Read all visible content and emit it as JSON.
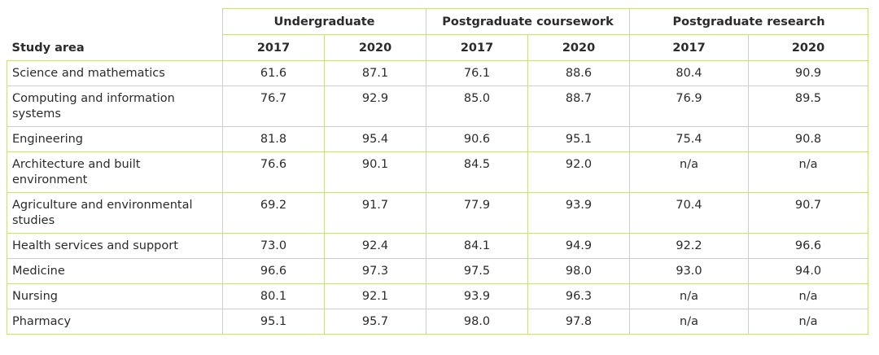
{
  "table": {
    "header": {
      "corner": "Study area",
      "groups": [
        "Undergraduate",
        "Postgraduate coursework",
        "Postgraduate research"
      ],
      "years": [
        "2017",
        "2020",
        "2017",
        "2020",
        "2017",
        "2020"
      ]
    },
    "rows": [
      [
        "Science and mathematics",
        "61.6",
        "87.1",
        "76.1",
        "88.6",
        "80.4",
        "90.9"
      ],
      [
        "Computing and information systems",
        "76.7",
        "92.9",
        "85.0",
        "88.7",
        "76.9",
        "89.5"
      ],
      [
        "Engineering",
        "81.8",
        "95.4",
        "90.6",
        "95.1",
        "75.4",
        "90.8"
      ],
      [
        "Architecture and built environment",
        "76.6",
        "90.1",
        "84.5",
        "92.0",
        "n/a",
        "n/a"
      ],
      [
        "Agriculture and environmental studies",
        "69.2",
        "91.7",
        "77.9",
        "93.9",
        "70.4",
        "90.7"
      ],
      [
        "Health services and support",
        "73.0",
        "92.4",
        "84.1",
        "94.9",
        "92.2",
        "96.6"
      ],
      [
        "Medicine",
        "96.6",
        "97.3",
        "97.5",
        "98.0",
        "93.0",
        "94.0"
      ],
      [
        "Nursing",
        "80.1",
        "92.1",
        "93.9",
        "96.3",
        "n/a",
        "n/a"
      ],
      [
        "Pharmacy",
        "95.1",
        "95.7",
        "98.0",
        "97.8",
        "n/a",
        "n/a"
      ]
    ]
  }
}
